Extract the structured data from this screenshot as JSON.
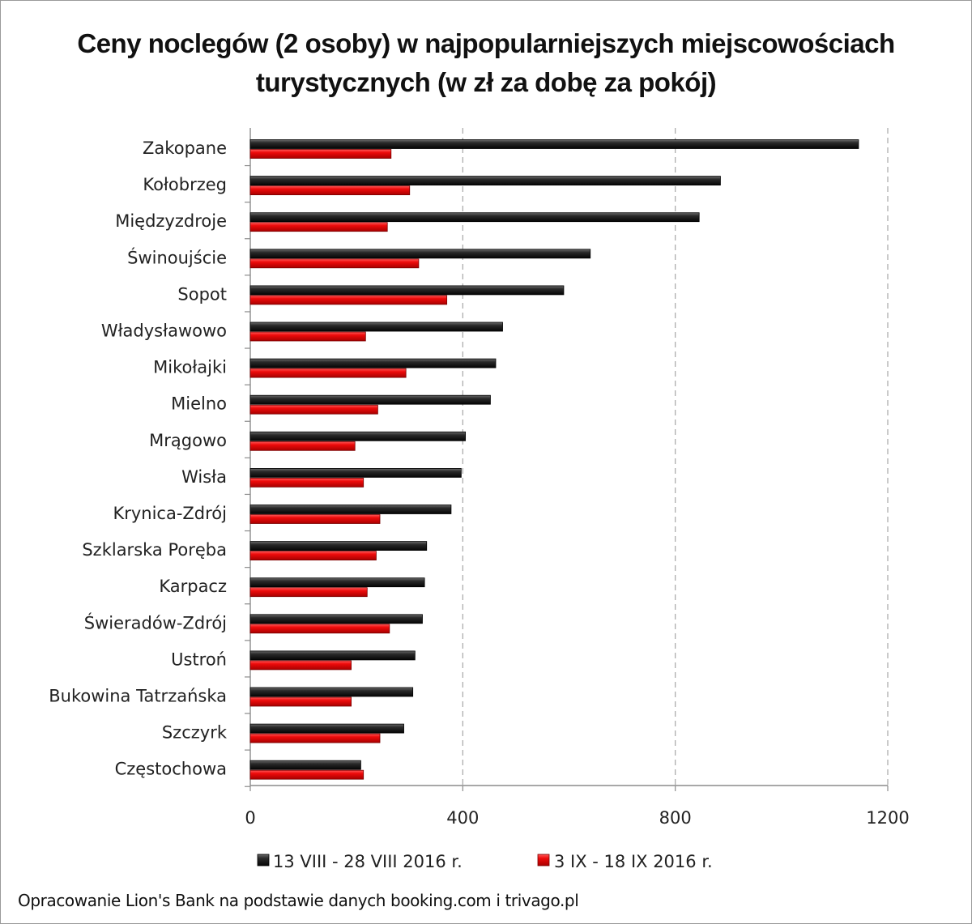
{
  "chart_data": {
    "type": "bar",
    "orientation": "horizontal",
    "title_lines": [
      "Ceny noclegów (2 osoby) w najpopularniejszych miejscowościach",
      "turystycznych (w zł za dobę za pokój)"
    ],
    "categories": [
      "Zakopane",
      "Kołobrzeg",
      "Międzyzdroje",
      "Świnoujście",
      "Sopot",
      "Władysławowo",
      "Mikołajki",
      "Mielno",
      "Mrągowo",
      "Wisła",
      "Krynica-Zdrój",
      "Szklarska Poręba",
      "Karpacz",
      "Świeradów-Zdrój",
      "Ustroń",
      "Bukowina Tatrzańska",
      "Szczyrk",
      "Częstochowa"
    ],
    "series": [
      {
        "name": "13 VIII - 28 VIII 2016 r.",
        "color": "#1a1a1a",
        "values": [
          1145,
          885,
          845,
          640,
          590,
          475,
          462,
          452,
          405,
          397,
          378,
          332,
          328,
          324,
          310,
          306,
          289,
          208
        ]
      },
      {
        "name": "3 IX - 18 IX 2016 r.",
        "color": "#e00000",
        "values": [
          265,
          300,
          258,
          317,
          370,
          217,
          293,
          240,
          197,
          213,
          244,
          237,
          220,
          262,
          190,
          190,
          244,
          213
        ]
      }
    ],
    "xlim": [
      0,
      1200
    ],
    "xticks": [
      "0",
      "400",
      "800",
      "1200"
    ],
    "grid": true,
    "legend": "bottom"
  },
  "source": "Opracowanie Lion's Bank na podstawie danych booking.com i trivago.pl"
}
